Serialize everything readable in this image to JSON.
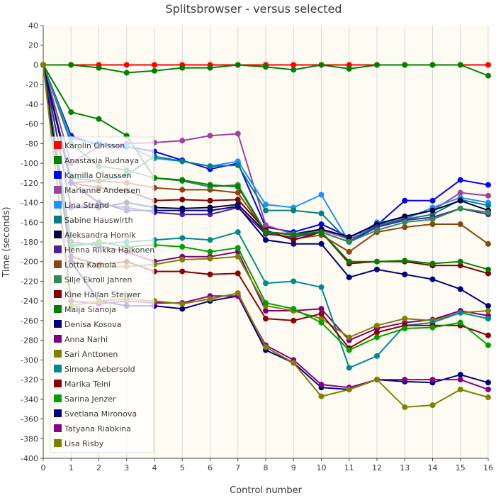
{
  "chart_data": {
    "type": "line",
    "title": "Splitsbrowser - versus selected",
    "xlabel": "Control number",
    "ylabel": "Time (seconds)",
    "ylim": [
      -400,
      40
    ],
    "yticks": [
      40,
      20,
      0,
      -20,
      -40,
      -60,
      -80,
      -100,
      -120,
      -140,
      -160,
      -180,
      -200,
      -220,
      -240,
      -260,
      -280,
      -300,
      -320,
      -340,
      -360,
      -380,
      -400
    ],
    "x": [
      0,
      1,
      2,
      3,
      4,
      5,
      6,
      7,
      8,
      9,
      10,
      11,
      12,
      13,
      14,
      15,
      16
    ],
    "legend_position": "left",
    "grid": "vertical",
    "colors": {
      "plot_background": "#fefcf2",
      "axis": "#444444"
    },
    "series": [
      {
        "name": "Karolin Ohlsson",
        "color": "#ff0000",
        "values": [
          0,
          0,
          0,
          0,
          0,
          0,
          0,
          0,
          0,
          0,
          0,
          0,
          0,
          0,
          0,
          0,
          0
        ]
      },
      {
        "name": "Anastasia Rudnaya",
        "color": "#008000",
        "values": [
          0,
          0,
          -3,
          -8,
          -6,
          -3,
          -3,
          0,
          -2,
          -5,
          0,
          -4,
          0,
          0,
          0,
          0,
          -11
        ]
      },
      {
        "name": "Kamilla Olaussen",
        "color": "#0000ff",
        "values": [
          0,
          -72,
          -82,
          -83,
          -88,
          -97,
          -106,
          -100,
          -165,
          -170,
          -162,
          -175,
          -163,
          -138,
          -138,
          -117,
          -122
        ]
      },
      {
        "name": "Marianne Andersen",
        "color": "#a040a0",
        "values": [
          0,
          -100,
          -83,
          -80,
          -79,
          -77,
          -72,
          -70,
          -163,
          -172,
          -168,
          -177,
          -165,
          -155,
          -148,
          -130,
          -133
        ]
      },
      {
        "name": "Lina Strand",
        "color": "#1e90ff",
        "values": [
          0,
          -75,
          -80,
          -82,
          -95,
          -98,
          -103,
          -98,
          -142,
          -145,
          -132,
          -180,
          -160,
          -157,
          -145,
          -135,
          -140
        ]
      },
      {
        "name": "Sabine Hauswirth",
        "color": "#008080",
        "values": [
          0,
          -115,
          -118,
          -112,
          -93,
          -98,
          -103,
          -102,
          -148,
          -148,
          -151,
          -180,
          -163,
          -157,
          -152,
          -137,
          -143
        ]
      },
      {
        "name": "Aleksandra Hornik",
        "color": "#000040",
        "values": [
          0,
          -145,
          -145,
          -140,
          -145,
          -146,
          -145,
          -142,
          -170,
          -172,
          -167,
          -175,
          -162,
          -154,
          -148,
          -138,
          -148
        ]
      },
      {
        "name": "Henna Riikka Haikonen",
        "color": "#5020a0",
        "values": [
          0,
          -145,
          -142,
          -145,
          -150,
          -152,
          -152,
          -145,
          -172,
          -175,
          -170,
          -180,
          -165,
          -158,
          -155,
          -146,
          -152
        ]
      },
      {
        "name": "Lotta Karhola",
        "color": "#8b4513",
        "values": [
          0,
          -120,
          -118,
          -120,
          -125,
          -127,
          -127,
          -130,
          -170,
          -177,
          -173,
          -190,
          -170,
          -165,
          -162,
          -162,
          -182
        ]
      },
      {
        "name": "Silje Ekroll Jahren",
        "color": "#2e8b57",
        "values": [
          0,
          -80,
          -103,
          -107,
          -115,
          -118,
          -124,
          -122,
          -170,
          -172,
          -170,
          -180,
          -168,
          -160,
          -157,
          -146,
          -150
        ]
      },
      {
        "name": "Kine Hallan Steiwer",
        "color": "#800000",
        "values": [
          0,
          -120,
          -125,
          -128,
          -138,
          -137,
          -138,
          -137,
          -168,
          -178,
          -170,
          -202,
          -200,
          -200,
          -204,
          -204,
          -212
        ]
      },
      {
        "name": "Maija Sianoja",
        "color": "#008000",
        "values": [
          0,
          -48,
          -55,
          -72,
          -115,
          -117,
          -122,
          -124,
          -170,
          -173,
          -170,
          -200,
          -200,
          -199,
          -202,
          -200,
          -208
        ]
      },
      {
        "name": "Denisa Kosova",
        "color": "#000080",
        "values": [
          0,
          -120,
          -140,
          -148,
          -148,
          -148,
          -148,
          -144,
          -178,
          -182,
          -182,
          -216,
          -208,
          -213,
          -218,
          -228,
          -245
        ]
      },
      {
        "name": "Anna Narhi",
        "color": "#800080",
        "values": [
          0,
          -180,
          -184,
          -190,
          -200,
          -195,
          -195,
          -190,
          -250,
          -250,
          -248,
          -280,
          -268,
          -262,
          -259,
          -250,
          -255
        ]
      },
      {
        "name": "Sari Anttonen",
        "color": "#808000",
        "values": [
          0,
          -200,
          -205,
          -205,
          -203,
          -198,
          -197,
          -195,
          -245,
          -250,
          -258,
          -277,
          -265,
          -258,
          -260,
          -252,
          -250
        ]
      },
      {
        "name": "Simona Aebersold",
        "color": "#008b8b",
        "values": [
          0,
          -183,
          -182,
          -180,
          -178,
          -176,
          -178,
          -170,
          -222,
          -220,
          -226,
          -308,
          -296,
          -265,
          -262,
          -252,
          -258
        ]
      },
      {
        "name": "Marika Teini",
        "color": "#8b0000",
        "values": [
          0,
          -195,
          -203,
          -200,
          -210,
          -210,
          -213,
          -212,
          -258,
          -260,
          -253,
          -288,
          -272,
          -265,
          -265,
          -265,
          -275
        ]
      },
      {
        "name": "Sarina Jenzer",
        "color": "#00a000",
        "values": [
          0,
          -185,
          -180,
          -185,
          -183,
          -185,
          -190,
          -186,
          -242,
          -248,
          -262,
          -290,
          -277,
          -268,
          -267,
          -262,
          -285
        ]
      },
      {
        "name": "Svetlana Mironova",
        "color": "#000080",
        "values": [
          0,
          -200,
          -240,
          -245,
          -245,
          -248,
          -240,
          -235,
          -290,
          -303,
          -328,
          -330,
          -320,
          -322,
          -323,
          -315,
          -323
        ]
      },
      {
        "name": "Tatyana Riabkina",
        "color": "#8b008b",
        "values": [
          0,
          -240,
          -243,
          -240,
          -242,
          -242,
          -235,
          -235,
          -285,
          -300,
          -325,
          -328,
          -320,
          -320,
          -320,
          -320,
          -330
        ]
      },
      {
        "name": "Lisa Risby",
        "color": "#808000",
        "values": [
          0,
          -245,
          -240,
          -238,
          -240,
          -243,
          -238,
          -232,
          -287,
          -303,
          -337,
          -330,
          -320,
          -348,
          -346,
          -330,
          -338
        ]
      }
    ]
  }
}
